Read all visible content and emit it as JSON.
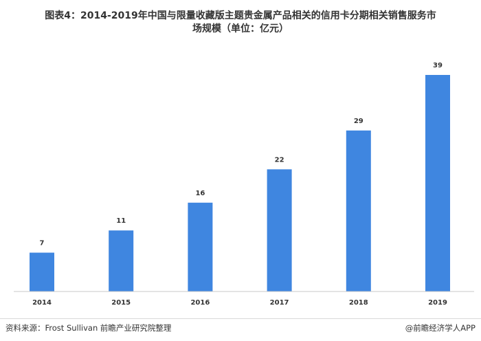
{
  "title_line1": "图表4：2014-2019年中国与限量收藏版主题贵金属产品相关的信用卡分期相关销售服务市",
  "title_line2": "场规模（单位：亿元）",
  "source": "资料来源：Frost Sullivan  前瞻产业研究院整理",
  "brand": "@前瞻经济学人APP",
  "colors": {
    "bar": "#3f86e0",
    "axis": "#c8c8c8"
  },
  "chart_data": {
    "type": "bar",
    "title": "图表4：2014-2019年中国与限量收藏版主题贵金属产品相关的信用卡分期相关销售服务市场规模（单位：亿元）",
    "categories": [
      "2014",
      "2015",
      "2016",
      "2017",
      "2018",
      "2019"
    ],
    "values": [
      7,
      11,
      16,
      22,
      29,
      39
    ],
    "xlabel": "",
    "ylabel": "",
    "ylim": [
      0,
      39
    ],
    "grid": false,
    "legend": "none"
  }
}
